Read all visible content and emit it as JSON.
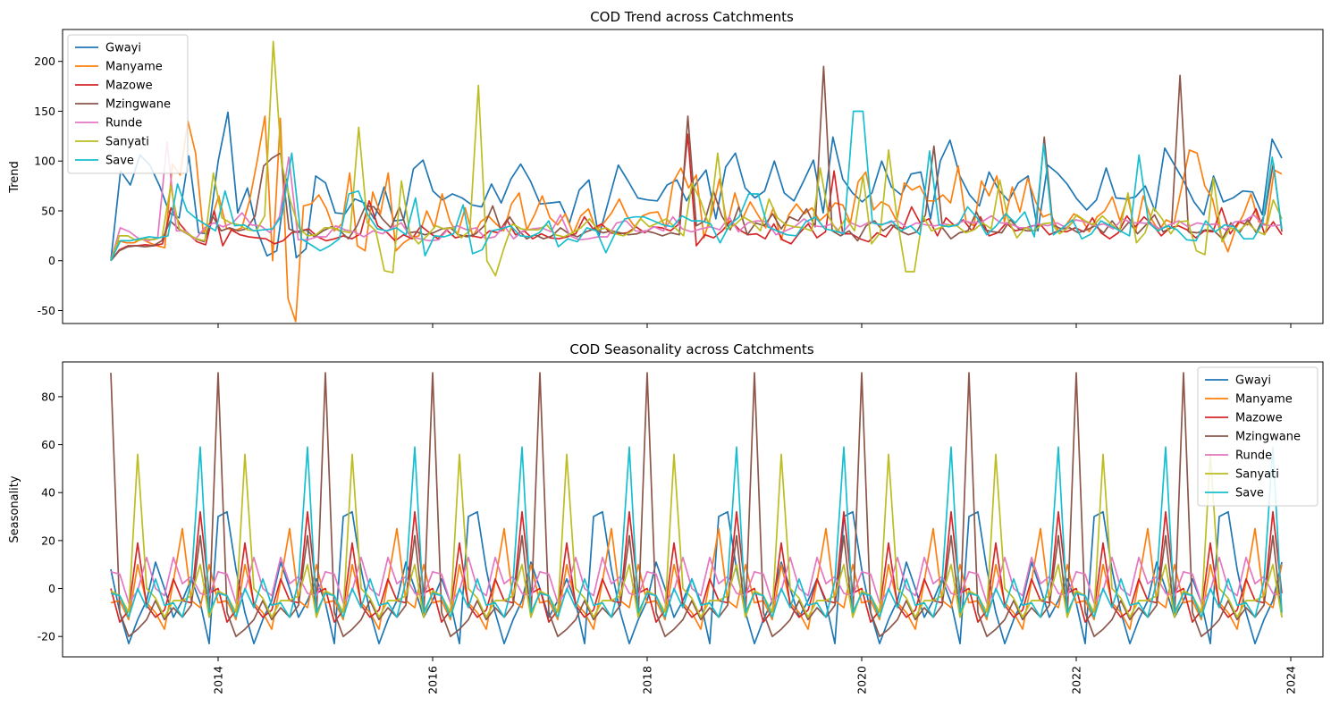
{
  "colors": {
    "Gwayi": "#1f77b4",
    "Manyame": "#ff7f0e",
    "Mazowe": "#d62728",
    "Mzingwane": "#8c564b",
    "Runde": "#e377c2",
    "Sanyati": "#bcbd22",
    "Save": "#17becf"
  },
  "chart_data": [
    {
      "type": "line",
      "title": "COD Trend across Catchments",
      "xlabel": "",
      "ylabel": "Trend",
      "x_unit": "year (monthly, Jan 2013 – Dec 2023)",
      "xlim": [
        2012.55,
        2024.3
      ],
      "ylim": [
        -63,
        232
      ],
      "yticks": [
        -50,
        0,
        50,
        100,
        150,
        200
      ],
      "legend_loc": "top-left",
      "grid": false,
      "series": [
        {
          "name": "Gwayi",
          "values": [
            0,
            90,
            76,
            106,
            96,
            75,
            48,
            43,
            105,
            28,
            27,
            100,
            149,
            48,
            73,
            30,
            5,
            10,
            82,
            3,
            12,
            85,
            78,
            48,
            47,
            62,
            58,
            42,
            74,
            40,
            41,
            92,
            101,
            70,
            61,
            67,
            63,
            56,
            54,
            77,
            58,
            82,
            97,
            80,
            57,
            58,
            59,
            38,
            71,
            81,
            24,
            60,
            96,
            80,
            63,
            61,
            60,
            76,
            81,
            60,
            78,
            91,
            42,
            94,
            108,
            73,
            63,
            70,
            100,
            68,
            60,
            80,
            101,
            48,
            124,
            82,
            68,
            59,
            68,
            100,
            74,
            66,
            87,
            89,
            42,
            100,
            121,
            85,
            66,
            55,
            89,
            71,
            60,
            78,
            85,
            30,
            96,
            88,
            77,
            62,
            51,
            61,
            93,
            63,
            62,
            64,
            75,
            50,
            113,
            96,
            79,
            59,
            46,
            85,
            59,
            63,
            70,
            69,
            46,
            122,
            103
          ]
        },
        {
          "name": "Manyame",
          "values": [
            0,
            20,
            18,
            18,
            22,
            18,
            15,
            13,
            97,
            86,
            140,
            108,
            28,
            40,
            65,
            33,
            30,
            33,
            60,
            100,
            145,
            0,
            143,
            -38,
            -61,
            55,
            57,
            66,
            52,
            30,
            37,
            88,
            15,
            10,
            69,
            47,
            88,
            10,
            18,
            23,
            25,
            50,
            33,
            67,
            40,
            26,
            53,
            24,
            39,
            45,
            37,
            30,
            57,
            68,
            31,
            46,
            65,
            43,
            36,
            47,
            27,
            45,
            52,
            31,
            38,
            48,
            62,
            45,
            34,
            45,
            48,
            49,
            33,
            79,
            93,
            73,
            86,
            23,
            48,
            82,
            35,
            68,
            42,
            59,
            46,
            33,
            53,
            21,
            46,
            57,
            47,
            53,
            40,
            47,
            58,
            56,
            38,
            79,
            89,
            51,
            59,
            55,
            40,
            78,
            71,
            75,
            60,
            60,
            66,
            58,
            95,
            40,
            35,
            80,
            65,
            85,
            39,
            74,
            49,
            83,
            60,
            44,
            47,
            30,
            36,
            47,
            42,
            29,
            44,
            50,
            64,
            40,
            64,
            28,
            65,
            43,
            30,
            41,
            37,
            74,
            111,
            108,
            75,
            62,
            28,
            9,
            32,
            46,
            67,
            39,
            36,
            91,
            87
          ]
        },
        {
          "name": "Mazowe",
          "values": [
            0,
            11,
            15,
            15,
            16,
            15,
            17,
            53,
            37,
            27,
            19,
            16,
            50,
            15,
            31,
            26,
            24,
            23,
            22,
            17,
            20,
            28,
            30,
            32,
            24,
            20,
            22,
            25,
            22,
            27,
            60,
            35,
            29,
            20,
            26,
            22,
            35,
            28,
            22,
            31,
            23,
            25,
            25,
            23,
            30,
            28,
            41,
            26,
            30,
            22,
            27,
            23,
            22,
            24,
            27,
            44,
            32,
            37,
            28,
            27,
            28,
            34,
            28,
            34,
            33,
            30,
            37,
            127,
            15,
            26,
            23,
            30,
            40,
            31,
            26,
            27,
            22,
            37,
            21,
            17,
            28,
            37,
            23,
            29,
            90,
            27,
            27,
            22,
            19,
            28,
            24,
            36,
            32,
            54,
            38,
            42,
            25,
            43,
            35,
            41,
            30,
            44,
            25,
            28,
            38,
            30,
            32,
            35,
            36,
            26,
            30,
            29,
            33,
            29,
            43,
            28,
            22,
            28,
            45,
            34,
            44,
            36,
            25,
            33,
            35,
            31,
            23,
            30,
            29,
            53,
            27,
            39,
            36,
            52,
            27,
            39,
            26
          ]
        },
        {
          "name": "Mzingwane",
          "values": [
            0,
            10,
            14,
            15,
            14,
            15,
            20,
            40,
            32,
            27,
            22,
            19,
            45,
            30,
            33,
            30,
            32,
            45,
            95,
            103,
            108,
            32,
            28,
            31,
            24,
            30,
            34,
            30,
            22,
            35,
            55,
            54,
            42,
            33,
            54,
            28,
            29,
            26,
            28,
            32,
            33,
            26,
            24,
            27,
            35,
            55,
            30,
            44,
            31,
            22,
            26,
            22,
            25,
            33,
            27,
            24,
            29,
            32,
            28,
            30,
            28,
            26,
            27,
            30,
            28,
            25,
            28,
            26,
            145,
            35,
            40,
            70,
            45,
            31,
            54,
            26,
            38,
            35,
            47,
            32,
            44,
            40,
            52,
            34,
            195,
            30,
            25,
            30,
            20,
            35,
            40,
            30,
            36,
            30,
            26,
            29,
            46,
            115,
            33,
            22,
            28,
            30,
            49,
            31,
            29,
            28,
            41,
            32,
            30,
            30,
            124,
            36,
            32,
            33,
            28,
            31,
            35,
            28,
            40,
            29,
            39,
            27,
            36,
            46,
            29,
            33,
            186,
            29,
            28,
            31,
            30,
            22,
            38,
            28,
            41,
            28,
            47,
            98,
            29
          ]
        },
        {
          "name": "Runde",
          "values": [
            0,
            33,
            29,
            22,
            20,
            23,
            119,
            30,
            30,
            21,
            33,
            38,
            34,
            38,
            48,
            36,
            35,
            28,
            44,
            104,
            21,
            21,
            24,
            24,
            35,
            31,
            29,
            24,
            30,
            27,
            33,
            38,
            24,
            22,
            20,
            21,
            32,
            35,
            31,
            33,
            22,
            24,
            35,
            22,
            30,
            32,
            33,
            29,
            46,
            25,
            21,
            22,
            24,
            24,
            38,
            40,
            30,
            29,
            34,
            30,
            44,
            32,
            29,
            32,
            34,
            31,
            44,
            29,
            38,
            40,
            39,
            26,
            30,
            34,
            42,
            35,
            34,
            37,
            27,
            38,
            34,
            39,
            36,
            38,
            40,
            33,
            38,
            36,
            35,
            37,
            35,
            40,
            38,
            39,
            45,
            38,
            37,
            33,
            33,
            37,
            35,
            38,
            33,
            41,
            39,
            35,
            37,
            32,
            42,
            38,
            38,
            37,
            32,
            36,
            40,
            34,
            38,
            36,
            37,
            31,
            39,
            40,
            46,
            36,
            35,
            36
          ]
        },
        {
          "name": "Sanyati",
          "values": [
            0,
            25,
            25,
            20,
            22,
            21,
            24,
            75,
            32,
            27,
            22,
            20,
            88,
            43,
            38,
            36,
            31,
            30,
            45,
            220,
            97,
            60,
            33,
            25,
            26,
            33,
            33,
            30,
            28,
            134,
            38,
            30,
            -10,
            -12,
            80,
            27,
            17,
            25,
            35,
            32,
            33,
            23,
            30,
            176,
            0,
            -15,
            13,
            37,
            32,
            31,
            31,
            36,
            26,
            24,
            28,
            33,
            42,
            31,
            33,
            27,
            25,
            30,
            42,
            34,
            38,
            42,
            33,
            25,
            78,
            60,
            35,
            108,
            31,
            36,
            44,
            39,
            30,
            62,
            43,
            36,
            34,
            33,
            30,
            93,
            44,
            29,
            43,
            30,
            85,
            17,
            28,
            111,
            41,
            -11,
            -11,
            45,
            30,
            33,
            36,
            35,
            28,
            31,
            38,
            32,
            81,
            41,
            23,
            33,
            30,
            37,
            38,
            27,
            33,
            46,
            40,
            36,
            45,
            37,
            30,
            68,
            18,
            28,
            53,
            42,
            27,
            39,
            40,
            10,
            6,
            83,
            19,
            33,
            30,
            38,
            30,
            26,
            61,
            42
          ]
        },
        {
          "name": "Save",
          "values": [
            0,
            20,
            20,
            22,
            24,
            23,
            25,
            77,
            50,
            42,
            36,
            30,
            70,
            35,
            36,
            30,
            31,
            32,
            46,
            108,
            22,
            16,
            10,
            15,
            22,
            67,
            70,
            46,
            32,
            30,
            33,
            26,
            63,
            5,
            25,
            24,
            27,
            56,
            7,
            11,
            30,
            32,
            35,
            25,
            24,
            28,
            40,
            14,
            22,
            19,
            33,
            30,
            8,
            28,
            42,
            44,
            44,
            40,
            36,
            34,
            45,
            40,
            40,
            37,
            18,
            36,
            44,
            67,
            67,
            34,
            30,
            26,
            25,
            39,
            44,
            32,
            30,
            27,
            150,
            150,
            38,
            36,
            40,
            30,
            35,
            26,
            110,
            36,
            34,
            36,
            54,
            43,
            26,
            35,
            47,
            38,
            49,
            24,
            117,
            26,
            33,
            41,
            22,
            27,
            40,
            35,
            30,
            25,
            106,
            38,
            30,
            35,
            31,
            21,
            20,
            40,
            29,
            36,
            34,
            22,
            22,
            38,
            104,
            32
          ]
        }
      ]
    },
    {
      "type": "line",
      "title": "COD Seasonality across Catchments",
      "xlabel": "",
      "ylabel": "Seasonality",
      "x_unit": "year (monthly, Jan 2013 – Dec 2023)",
      "xlim": [
        2012.55,
        2024.3
      ],
      "ylim": [
        -28.5,
        94.5
      ],
      "yticks": [
        -20,
        0,
        20,
        40,
        60,
        80
      ],
      "legend_loc": "top-right",
      "grid": false,
      "xticks": [
        "2014",
        "2016",
        "2018",
        "2020",
        "2022",
        "2024"
      ],
      "series": [
        {
          "name": "Gwayi",
          "period_values": [
            8,
            -10,
            -23,
            -13,
            -5,
            11,
            0,
            -12,
            -5,
            4,
            -6,
            -23,
            30,
            32
          ]
        },
        {
          "name": "Manyame",
          "period_values": [
            -6,
            -5,
            -13,
            10,
            -6,
            -10,
            -17,
            3,
            25,
            -5,
            -8,
            10
          ]
        },
        {
          "name": "Mazowe",
          "period_values": [
            0,
            -14,
            -9,
            19,
            -7,
            -12,
            -9,
            4,
            -5,
            -6,
            32,
            -2
          ]
        },
        {
          "name": "Mzingwane",
          "period_values": [
            90,
            -10,
            -20,
            -17,
            -13,
            -5,
            -13,
            -8,
            -12,
            -7,
            22,
            -12
          ]
        },
        {
          "name": "Runde",
          "period_values": [
            7,
            6,
            -6,
            -1,
            13,
            0,
            -3,
            13,
            2,
            5,
            -2,
            -3
          ]
        },
        {
          "name": "Sanyati",
          "period_values": [
            -1,
            -3,
            -10,
            56,
            0,
            -4,
            -12,
            -5,
            -5,
            -3,
            10,
            -12
          ]
        },
        {
          "name": "Save",
          "period_values": [
            -2,
            -3,
            -12,
            0,
            -8,
            4,
            -7,
            -6,
            -12,
            3,
            59,
            -10
          ]
        }
      ]
    }
  ]
}
